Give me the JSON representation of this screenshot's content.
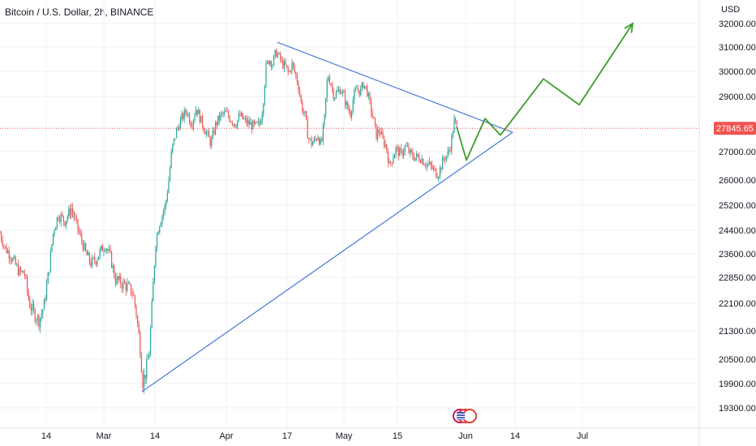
{
  "chart_data": {
    "type": "candlestick",
    "title": "Bitcoin / U.S. Dollar, 2h, BINANCE",
    "yunit": "USD",
    "ylim": [
      19000,
      32300
    ],
    "x_ticks": [
      "14",
      "Mar",
      "14",
      "Apr",
      "17",
      "May",
      "15",
      "Jun",
      "14",
      "Jul"
    ],
    "y_ticks": [
      32000,
      31000,
      30000,
      29000,
      27000,
      26000,
      25200,
      24400,
      23600,
      22850,
      22100,
      21300,
      20500,
      19900,
      19300
    ],
    "y_tick_labels": [
      "32000.00",
      "31000.00",
      "30000.00",
      "29000.00",
      "27000.00",
      "26000.00",
      "25200.00",
      "24400.00",
      "23600.00",
      "22850.00",
      "22100.00",
      "21300.00",
      "20500.00",
      "19900.00",
      "19300.00"
    ],
    "current_price": 27845.65,
    "current_price_label": "27845.65",
    "price_path": [
      {
        "t": 0,
        "p": 24300
      },
      {
        "t": 6,
        "p": 23800
      },
      {
        "t": 12,
        "p": 23600
      },
      {
        "t": 18,
        "p": 23300
      },
      {
        "t": 24,
        "p": 23000
      },
      {
        "t": 30,
        "p": 23000
      },
      {
        "t": 36,
        "p": 22100
      },
      {
        "t": 42,
        "p": 21800
      },
      {
        "t": 48,
        "p": 21600
      },
      {
        "t": 54,
        "p": 22000
      },
      {
        "t": 60,
        "p": 23000
      },
      {
        "t": 66,
        "p": 24400
      },
      {
        "t": 72,
        "p": 24900
      },
      {
        "t": 80,
        "p": 24700
      },
      {
        "t": 88,
        "p": 25100
      },
      {
        "t": 94,
        "p": 24600
      },
      {
        "t": 100,
        "p": 24100
      },
      {
        "t": 106,
        "p": 23600
      },
      {
        "t": 112,
        "p": 23300
      },
      {
        "t": 118,
        "p": 23400
      },
      {
        "t": 124,
        "p": 23700
      },
      {
        "t": 130,
        "p": 23900
      },
      {
        "t": 136,
        "p": 23500
      },
      {
        "t": 142,
        "p": 22800
      },
      {
        "t": 148,
        "p": 22700
      },
      {
        "t": 156,
        "p": 22600
      },
      {
        "t": 164,
        "p": 22400
      },
      {
        "t": 168,
        "p": 21800
      },
      {
        "t": 172,
        "p": 21000
      },
      {
        "t": 176,
        "p": 19950
      },
      {
        "t": 180,
        "p": 20200
      },
      {
        "t": 184,
        "p": 20700
      },
      {
        "t": 188,
        "p": 22300
      },
      {
        "t": 192,
        "p": 24000
      },
      {
        "t": 196,
        "p": 24600
      },
      {
        "t": 200,
        "p": 24900
      },
      {
        "t": 204,
        "p": 25200
      },
      {
        "t": 208,
        "p": 26000
      },
      {
        "t": 212,
        "p": 27100
      },
      {
        "t": 218,
        "p": 27800
      },
      {
        "t": 224,
        "p": 28200
      },
      {
        "t": 230,
        "p": 28500
      },
      {
        "t": 236,
        "p": 28000
      },
      {
        "t": 242,
        "p": 28600
      },
      {
        "t": 248,
        "p": 28100
      },
      {
        "t": 254,
        "p": 27700
      },
      {
        "t": 260,
        "p": 27300
      },
      {
        "t": 266,
        "p": 28000
      },
      {
        "t": 272,
        "p": 28300
      },
      {
        "t": 278,
        "p": 28400
      },
      {
        "t": 284,
        "p": 28200
      },
      {
        "t": 290,
        "p": 28000
      },
      {
        "t": 296,
        "p": 28300
      },
      {
        "t": 302,
        "p": 28100
      },
      {
        "t": 308,
        "p": 28000
      },
      {
        "t": 314,
        "p": 27900
      },
      {
        "t": 320,
        "p": 28000
      },
      {
        "t": 324,
        "p": 28600
      },
      {
        "t": 328,
        "p": 30200
      },
      {
        "t": 332,
        "p": 30500
      },
      {
        "t": 336,
        "p": 30300
      },
      {
        "t": 340,
        "p": 30800
      },
      {
        "t": 344,
        "p": 30600
      },
      {
        "t": 348,
        "p": 30300
      },
      {
        "t": 352,
        "p": 30200
      },
      {
        "t": 356,
        "p": 29900
      },
      {
        "t": 360,
        "p": 30300
      },
      {
        "t": 364,
        "p": 29900
      },
      {
        "t": 368,
        "p": 29400
      },
      {
        "t": 372,
        "p": 28600
      },
      {
        "t": 376,
        "p": 28300
      },
      {
        "t": 380,
        "p": 27500
      },
      {
        "t": 384,
        "p": 27300
      },
      {
        "t": 388,
        "p": 27400
      },
      {
        "t": 392,
        "p": 27600
      },
      {
        "t": 396,
        "p": 27200
      },
      {
        "t": 400,
        "p": 28200
      },
      {
        "t": 404,
        "p": 29900
      },
      {
        "t": 408,
        "p": 29500
      },
      {
        "t": 412,
        "p": 29000
      },
      {
        "t": 416,
        "p": 29200
      },
      {
        "t": 420,
        "p": 29300
      },
      {
        "t": 424,
        "p": 29000
      },
      {
        "t": 428,
        "p": 28600
      },
      {
        "t": 432,
        "p": 28400
      },
      {
        "t": 436,
        "p": 29000
      },
      {
        "t": 440,
        "p": 29300
      },
      {
        "t": 444,
        "p": 29200
      },
      {
        "t": 448,
        "p": 29500
      },
      {
        "t": 452,
        "p": 29300
      },
      {
        "t": 456,
        "p": 28700
      },
      {
        "t": 460,
        "p": 28200
      },
      {
        "t": 464,
        "p": 27600
      },
      {
        "t": 468,
        "p": 27800
      },
      {
        "t": 472,
        "p": 27400
      },
      {
        "t": 476,
        "p": 27200
      },
      {
        "t": 480,
        "p": 26500
      },
      {
        "t": 484,
        "p": 26800
      },
      {
        "t": 488,
        "p": 27100
      },
      {
        "t": 494,
        "p": 26900
      },
      {
        "t": 500,
        "p": 27200
      },
      {
        "t": 506,
        "p": 26900
      },
      {
        "t": 512,
        "p": 26800
      },
      {
        "t": 518,
        "p": 26800
      },
      {
        "t": 524,
        "p": 26600
      },
      {
        "t": 530,
        "p": 26500
      },
      {
        "t": 536,
        "p": 26300
      },
      {
        "t": 540,
        "p": 26200
      },
      {
        "t": 544,
        "p": 26500
      },
      {
        "t": 548,
        "p": 26800
      },
      {
        "t": 552,
        "p": 26900
      },
      {
        "t": 556,
        "p": 27300
      },
      {
        "t": 560,
        "p": 28100
      },
      {
        "t": 564,
        "p": 27845
      }
    ],
    "trendlines": [
      {
        "name": "upper",
        "from": {
          "t": 342,
          "p": 31200
        },
        "to": {
          "t": 632,
          "p": 27700
        }
      },
      {
        "name": "lower",
        "from": {
          "t": 175,
          "p": 19700
        },
        "to": {
          "t": 632,
          "p": 27700
        }
      }
    ],
    "projection": [
      {
        "t": 563,
        "p": 27900
      },
      {
        "t": 575,
        "p": 26700
      },
      {
        "t": 598,
        "p": 28200
      },
      {
        "t": 617,
        "p": 27600
      },
      {
        "t": 670,
        "p": 29700
      },
      {
        "t": 714,
        "p": 28700
      },
      {
        "t": 780,
        "p": 32000
      }
    ],
    "colors": {
      "up": "#26a69a",
      "down": "#ef5350",
      "trendline": "#4a78d6",
      "projection": "#3c9b2d",
      "price_tag": "#f05350",
      "grid": "#eef0f3"
    }
  }
}
